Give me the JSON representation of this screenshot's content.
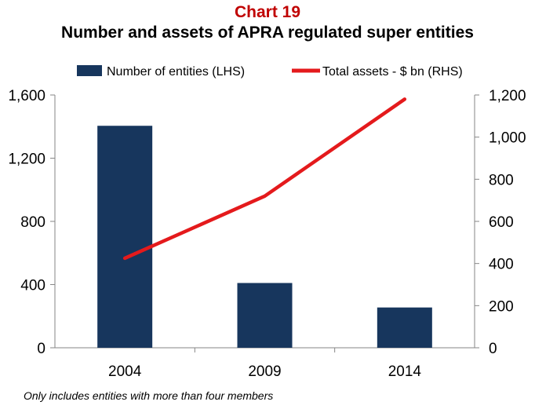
{
  "chart_number": "Chart 19",
  "footnote": "Only includes entities with more than four members",
  "colors": {
    "bars": "#17365d",
    "line": "#e41a1c",
    "axis": "#868686",
    "number": "#c00000"
  },
  "chart_data": {
    "type": "bar",
    "title": "Number and assets of APRA regulated super entities",
    "categories": [
      "2004",
      "2009",
      "2014"
    ],
    "series": [
      {
        "name": "Number of entities (LHS)",
        "type": "bar",
        "axis": "left",
        "values": [
          1405,
          410,
          255
        ]
      },
      {
        "name": "Total assets - $ bn (RHS)",
        "type": "line",
        "axis": "right",
        "values": [
          425,
          720,
          1180
        ]
      }
    ],
    "y_left": {
      "min": 0,
      "max": 1600,
      "ticks": [
        0,
        400,
        800,
        1200,
        1600
      ],
      "tick_labels": [
        "0",
        "400",
        "800",
        "1,200",
        "1,600"
      ]
    },
    "y_right": {
      "min": 0,
      "max": 1200,
      "ticks": [
        0,
        200,
        400,
        600,
        800,
        1000,
        1200
      ],
      "tick_labels": [
        "0",
        "200",
        "400",
        "600",
        "800",
        "1,000",
        "1,200"
      ]
    },
    "legend_position": "top",
    "grid": false
  }
}
